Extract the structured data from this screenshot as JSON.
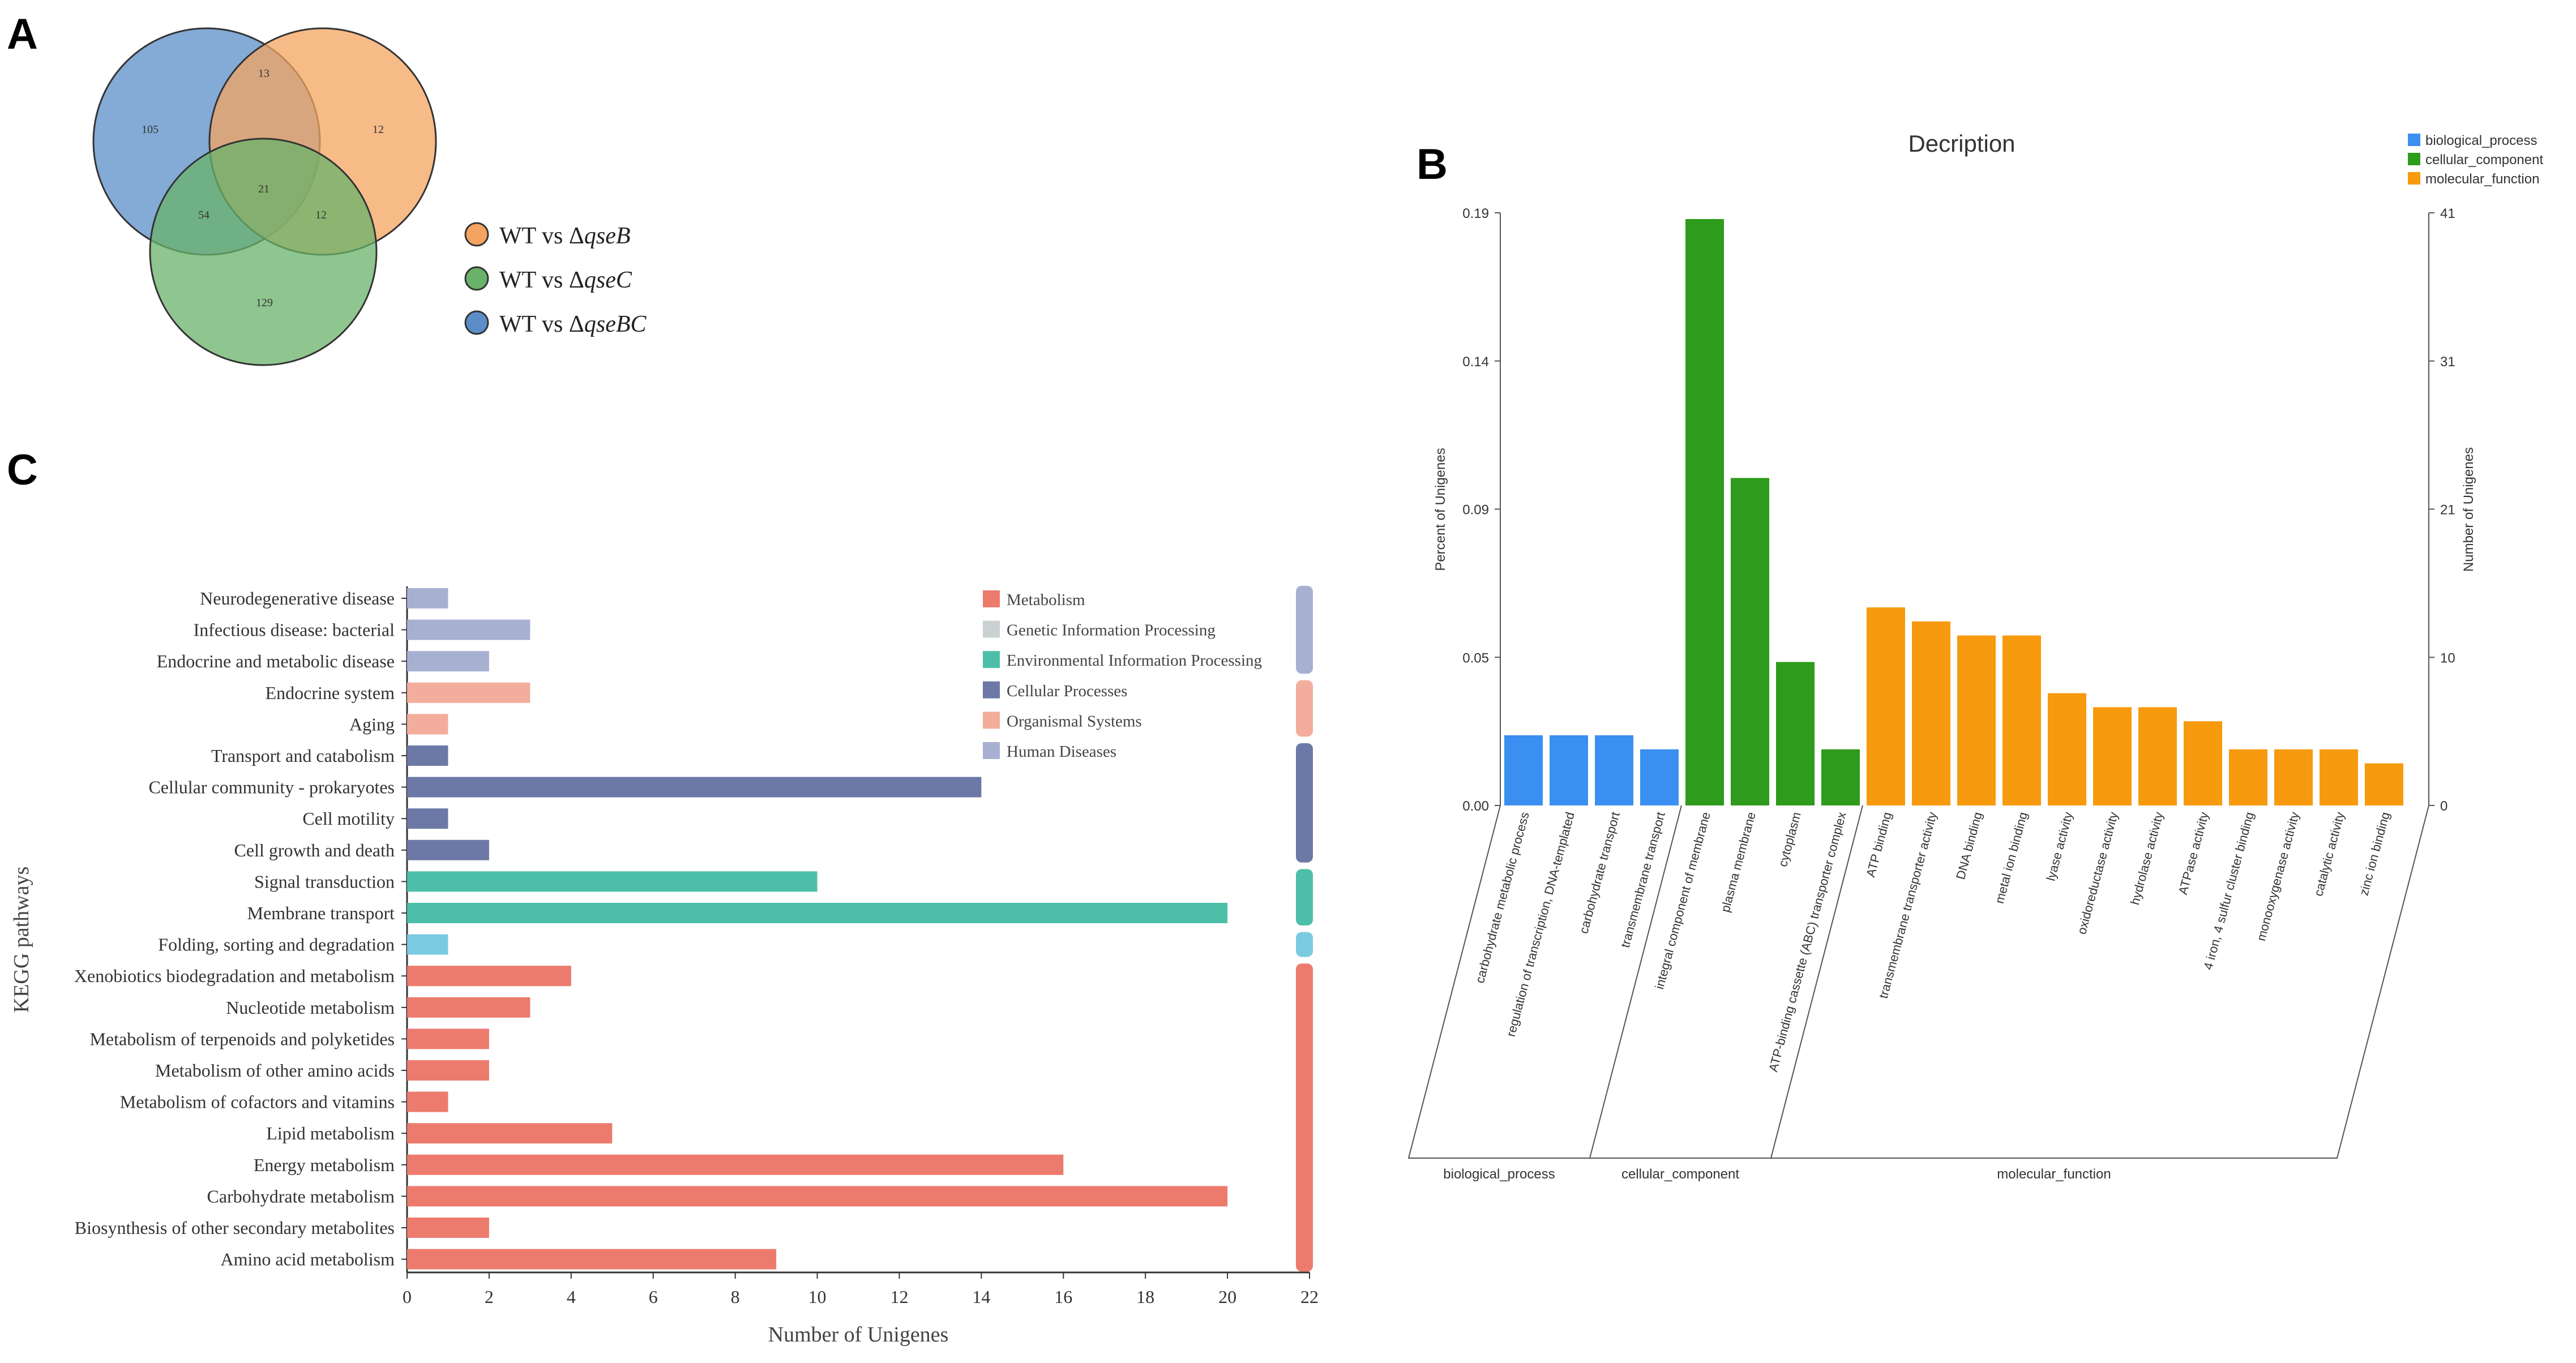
{
  "panel_labels": {
    "a": "A",
    "b": "B",
    "c": "C"
  },
  "colors": {
    "venn_b": "#f4a460",
    "venn_c": "#6ab26a",
    "venn_bc": "#5b8ec8",
    "go_biological_process": "#3b8ff0",
    "go_cellular_component": "#2e9b1c",
    "go_molecular_function": "#f79a0e",
    "kegg_metabolism": "#ec7b6e",
    "kegg_genetic": "#c9d1d3",
    "kegg_environmental": "#4dbfa8",
    "kegg_cellular": "#6c79a6",
    "kegg_organismal": "#f3ad9c",
    "kegg_human": "#a8b0d2",
    "kegg_folding": "#7bcbe0"
  },
  "chart_data": [
    {
      "type": "venn",
      "panel": "A",
      "sets": [
        {
          "name_prefix": "WT vs Δ",
          "name_gene": "qseB"
        },
        {
          "name_prefix": "WT vs Δ",
          "name_gene": "qseC"
        },
        {
          "name_prefix": "WT vs Δ",
          "name_gene": "qseBC"
        }
      ],
      "regions": {
        "bc_only": "105",
        "b_only": "12",
        "c_only": "129",
        "b_and_bc": "13",
        "c_and_bc": "54",
        "b_and_c": "12",
        "all_three": "21"
      }
    },
    {
      "type": "bar",
      "panel": "B",
      "title": "Decription",
      "ylabel_left": "Percent of Unigenes",
      "ylabel_right": "Number of Unigenes",
      "yticks_left": [
        "0.00",
        "0.05",
        "0.09",
        "0.14",
        "0.19"
      ],
      "yticks_right": [
        "0",
        "10",
        "21",
        "31",
        "41"
      ],
      "ylim": [
        0,
        0.19
      ],
      "legend": [
        "biological_process",
        "cellular_component",
        "molecular_function"
      ],
      "groups": [
        {
          "name": "biological_process",
          "key": "go_biological_process",
          "categories": [
            "carbohydrate metabolic process",
            "regulation of transcription, DNA-templated",
            "carbohydrate transport",
            "transmembrane transport"
          ],
          "values": [
            0.0225,
            0.0225,
            0.0225,
            0.018
          ]
        },
        {
          "name": "cellular_component",
          "key": "go_cellular_component",
          "categories": [
            "integral component of membrane",
            "plasma membrane",
            "cytoplasm",
            "ATP-binding cassette (ABC) transporter complex"
          ],
          "values": [
            0.188,
            0.105,
            0.046,
            0.018
          ]
        },
        {
          "name": "molecular_function",
          "key": "go_molecular_function",
          "categories": [
            "ATP binding",
            "transmembrane transporter activity",
            "DNA binding",
            "metal ion binding",
            "lyase activity",
            "oxidoreductase activity",
            "hydrolase activity",
            "ATPase activity",
            "4 iron, 4 sulfur cluster binding",
            "monooxygenase activity",
            "catalytic activity",
            "zinc ion binding"
          ],
          "values": [
            0.0635,
            0.059,
            0.0545,
            0.0545,
            0.036,
            0.0315,
            0.0315,
            0.027,
            0.018,
            0.018,
            0.018,
            0.0135
          ]
        }
      ]
    },
    {
      "type": "bar",
      "orientation": "horizontal",
      "panel": "C",
      "xlabel": "Number of Unigenes",
      "ylabel": "KEGG pathways",
      "xlim": [
        0,
        22
      ],
      "xticks": [
        0,
        2,
        4,
        6,
        8,
        10,
        12,
        14,
        16,
        18,
        20,
        22
      ],
      "legend": [
        {
          "label": "Metabolism",
          "key": "kegg_metabolism"
        },
        {
          "label": "Genetic Information Processing",
          "key": "kegg_genetic"
        },
        {
          "label": "Environmental Information Processing",
          "key": "kegg_environmental"
        },
        {
          "label": "Cellular Processes",
          "key": "kegg_cellular"
        },
        {
          "label": "Organismal Systems",
          "key": "kegg_organismal"
        },
        {
          "label": "Human Diseases",
          "key": "kegg_human"
        }
      ],
      "pathways": [
        {
          "name": "Neurodegenerative disease",
          "value": 1,
          "key": "kegg_human"
        },
        {
          "name": "Infectious disease: bacterial",
          "value": 3,
          "key": "kegg_human"
        },
        {
          "name": "Endocrine and metabolic disease",
          "value": 2,
          "key": "kegg_human"
        },
        {
          "name": "Endocrine system",
          "value": 3,
          "key": "kegg_organismal"
        },
        {
          "name": "Aging",
          "value": 1,
          "key": "kegg_organismal"
        },
        {
          "name": "Transport and catabolism",
          "value": 1,
          "key": "kegg_cellular"
        },
        {
          "name": "Cellular community - prokaryotes",
          "value": 14,
          "key": "kegg_cellular"
        },
        {
          "name": "Cell motility",
          "value": 1,
          "key": "kegg_cellular"
        },
        {
          "name": "Cell growth and death",
          "value": 2,
          "key": "kegg_cellular"
        },
        {
          "name": "Signal transduction",
          "value": 10,
          "key": "kegg_environmental"
        },
        {
          "name": "Membrane transport",
          "value": 20,
          "key": "kegg_environmental"
        },
        {
          "name": "Folding, sorting and degradation",
          "value": 1,
          "key": "kegg_folding"
        },
        {
          "name": "Xenobiotics biodegradation and metabolism",
          "value": 4,
          "key": "kegg_metabolism"
        },
        {
          "name": "Nucleotide metabolism",
          "value": 3,
          "key": "kegg_metabolism"
        },
        {
          "name": "Metabolism of terpenoids and polyketides",
          "value": 2,
          "key": "kegg_metabolism"
        },
        {
          "name": "Metabolism of other amino acids",
          "value": 2,
          "key": "kegg_metabolism"
        },
        {
          "name": "Metabolism of cofactors and vitamins",
          "value": 1,
          "key": "kegg_metabolism"
        },
        {
          "name": "Lipid metabolism",
          "value": 5,
          "key": "kegg_metabolism"
        },
        {
          "name": "Energy metabolism",
          "value": 16,
          "key": "kegg_metabolism"
        },
        {
          "name": "Carbohydrate metabolism",
          "value": 20,
          "key": "kegg_metabolism"
        },
        {
          "name": "Biosynthesis of other secondary metabolites",
          "value": 2,
          "key": "kegg_metabolism"
        },
        {
          "name": "Amino acid metabolism",
          "value": 9,
          "key": "kegg_metabolism"
        }
      ],
      "side_groups": [
        {
          "key": "kegg_human",
          "count": 3
        },
        {
          "key": "kegg_organismal",
          "count": 2
        },
        {
          "key": "kegg_cellular",
          "count": 4
        },
        {
          "key": "kegg_environmental",
          "count": 2
        },
        {
          "key": "kegg_folding",
          "count": 1
        },
        {
          "key": "kegg_metabolism",
          "count": 10
        }
      ]
    }
  ]
}
